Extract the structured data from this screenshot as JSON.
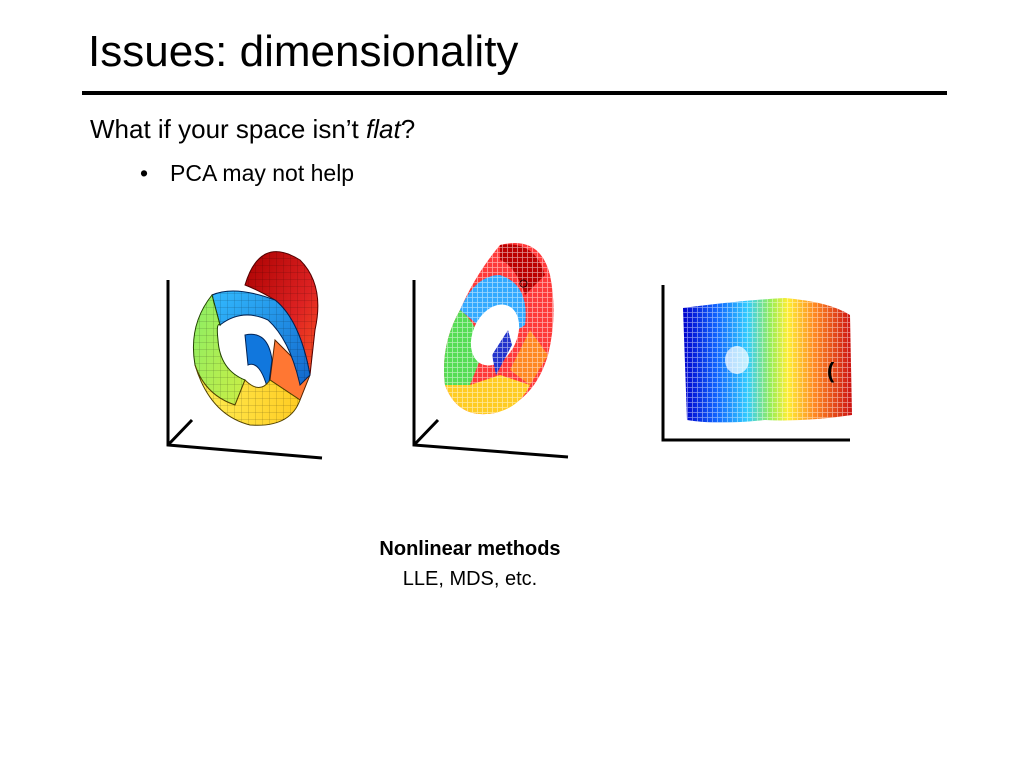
{
  "slide": {
    "title": "Issues:  dimensionality",
    "question_pre": "What if your space isn’t ",
    "question_em": "flat",
    "question_post": "?",
    "bullet_marker": "•",
    "bullet_text": "PCA may not help"
  },
  "caption": {
    "heading": "Nonlinear methods",
    "subtext": "LLE, MDS, etc."
  },
  "figures": {
    "swiss_roll_surface": {
      "icon": "swiss-roll-3d-surface",
      "colormap": [
        "#0000cc",
        "#22aaff",
        "#88ee44",
        "#ffee33",
        "#ff7722",
        "#cc1111"
      ]
    },
    "swiss_roll_points": {
      "icon": "swiss-roll-3d-scatter"
    },
    "unrolled_embedding": {
      "icon": "flat-2d-embedding"
    }
  }
}
